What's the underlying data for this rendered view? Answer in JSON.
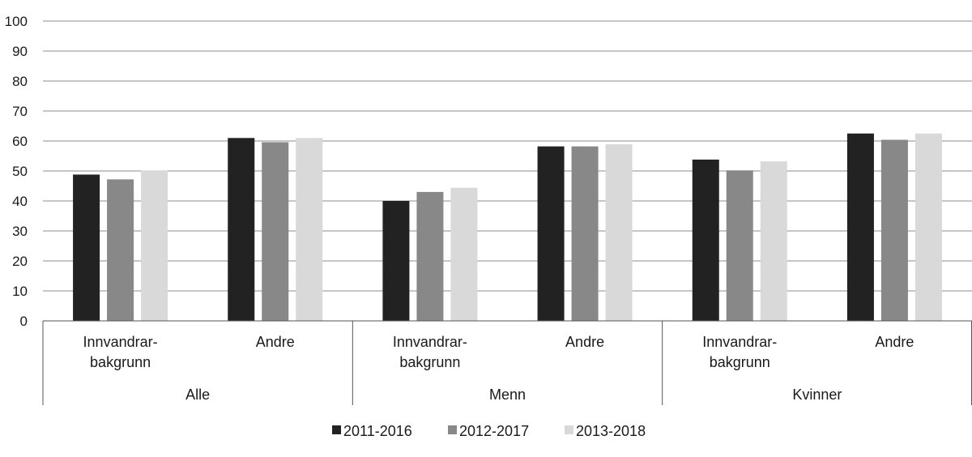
{
  "chart_data": {
    "type": "bar",
    "ylim": [
      0,
      100
    ],
    "yticks": [
      0,
      10,
      20,
      30,
      40,
      50,
      60,
      70,
      80,
      90,
      100
    ],
    "grid": true,
    "legend_position": "bottom",
    "groups": [
      {
        "label": "Alle",
        "categories": [
          {
            "lines": [
              "Innvandrar-",
              "bakgrunn"
            ]
          },
          {
            "lines": [
              "Andre"
            ]
          }
        ]
      },
      {
        "label": "Menn",
        "categories": [
          {
            "lines": [
              "Innvandrar-",
              "bakgrunn"
            ]
          },
          {
            "lines": [
              "Andre"
            ]
          }
        ]
      },
      {
        "label": "Kvinner",
        "categories": [
          {
            "lines": [
              "Innvandrar-",
              "bakgrunn"
            ]
          },
          {
            "lines": [
              "Andre"
            ]
          }
        ]
      }
    ],
    "series": [
      {
        "name": "2011-2016",
        "color": "#222222",
        "values": [
          48.8,
          61.0,
          40.0,
          58.2,
          53.8,
          62.5
        ]
      },
      {
        "name": "2012-2017",
        "color": "#888888",
        "values": [
          47.2,
          59.6,
          43.0,
          58.2,
          50.2,
          60.4
        ]
      },
      {
        "name": "2013-2018",
        "color": "#d9d9d9",
        "values": [
          50.2,
          61.0,
          44.4,
          58.9,
          53.2,
          62.5
        ]
      }
    ]
  }
}
